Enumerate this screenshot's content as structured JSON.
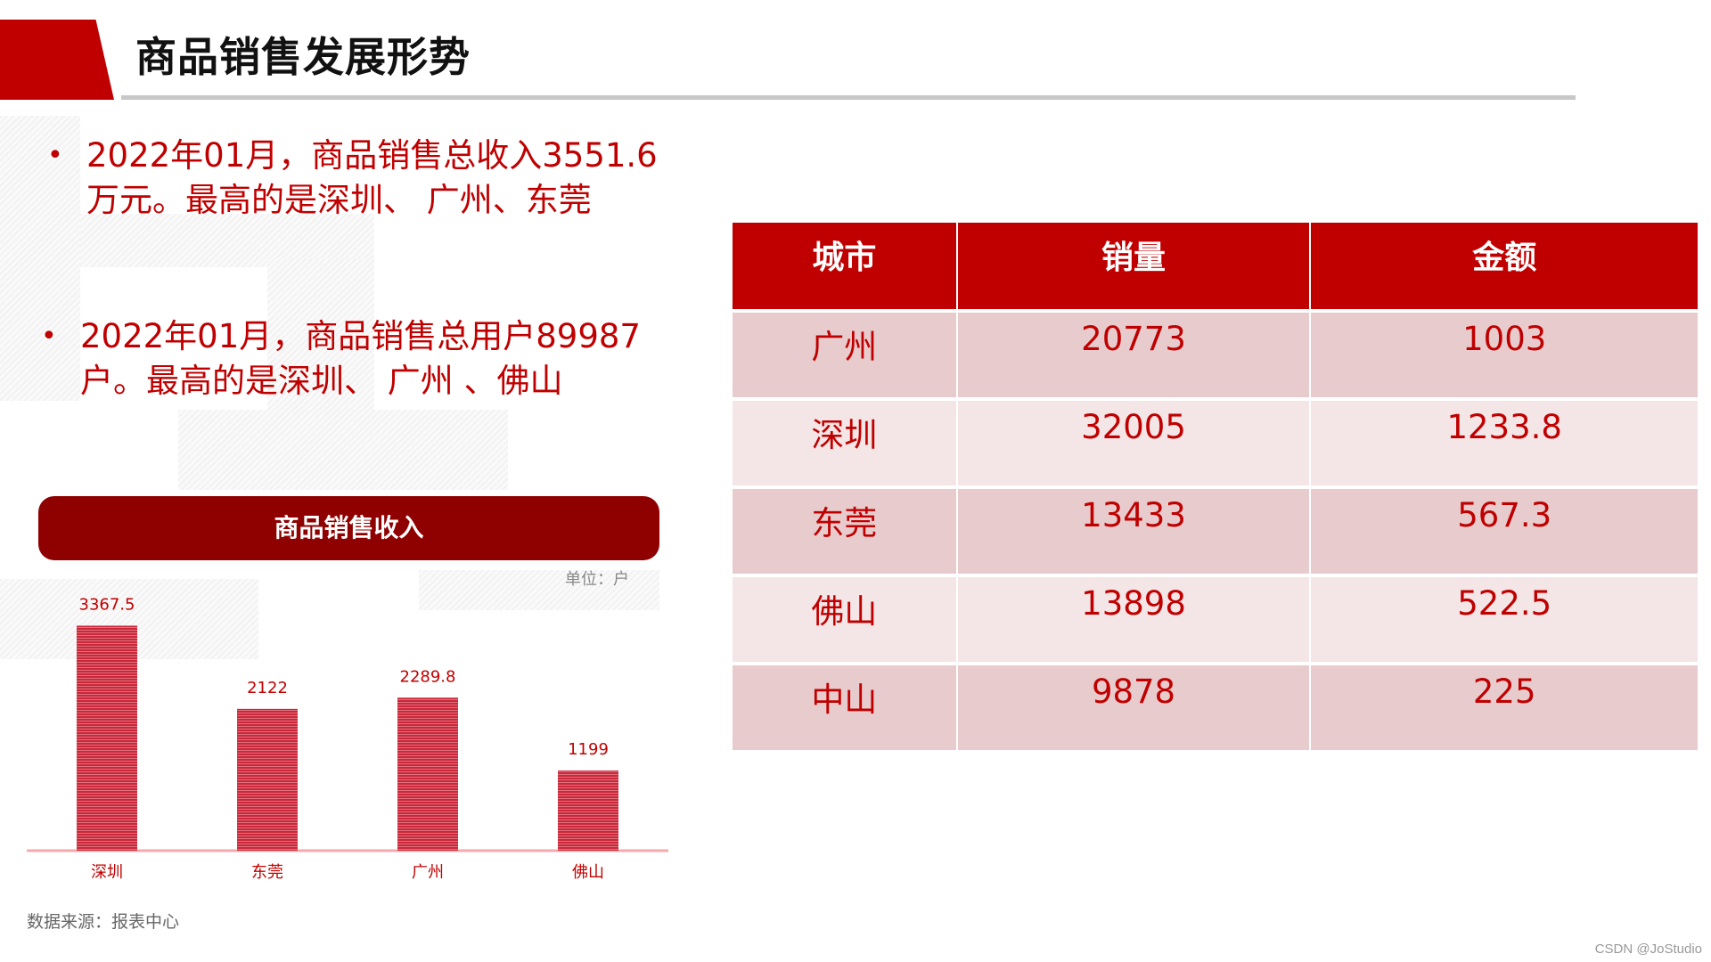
{
  "header": {
    "title": "商品销售发展形势"
  },
  "bullets": [
    {
      "line1": "2022年01月，商品销售总收入3551.6",
      "line2": "万元。最高的是深圳、 广州、东莞"
    },
    {
      "line1": "2022年01月，商品销售总用户89987",
      "line2": "户。最高的是深圳、 广州 、佛山"
    }
  ],
  "chart": {
    "banner": "商品销售收入",
    "unit": "单位：户",
    "source": "数据来源：报表中心"
  },
  "chart_data": {
    "type": "bar",
    "title": "商品销售收入",
    "categories": [
      "深圳",
      "东莞",
      "广州",
      "佛山"
    ],
    "values": [
      3367.5,
      2122,
      2289.8,
      1199
    ],
    "value_labels": [
      "3367.5",
      "2122",
      "2289.8",
      "1199"
    ],
    "ylim": [
      0,
      3800
    ],
    "bar_color": "#c8283a",
    "baseline_color": "#f4a9ad",
    "grid": false
  },
  "table": {
    "headers": [
      "城市",
      "销量",
      "金额"
    ],
    "rows": [
      [
        "广州",
        "20773",
        "1003"
      ],
      [
        "深圳",
        "32005",
        "1233.8"
      ],
      [
        "东莞",
        "13433",
        "567.3"
      ],
      [
        "佛山",
        "13898",
        "522.5"
      ],
      [
        "中山",
        "9878",
        "225"
      ]
    ]
  },
  "colors": {
    "accent": "#c00000",
    "banner": "#8f0000",
    "row_odd": "#e8cccd",
    "row_even": "#f4e5e6"
  },
  "watermark": "CSDN @JoStudio"
}
